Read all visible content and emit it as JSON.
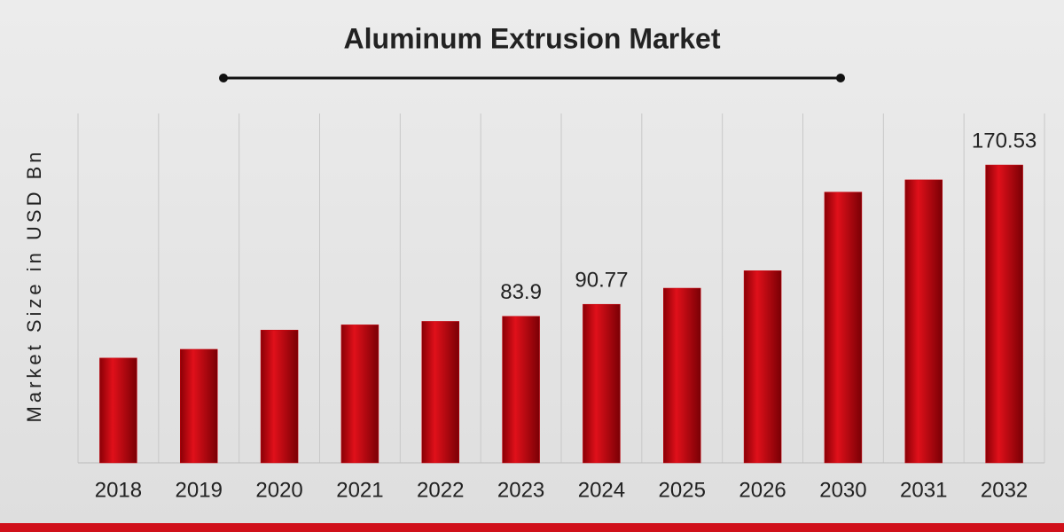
{
  "chart_data": {
    "type": "bar",
    "title": "Aluminum Extrusion Market",
    "y_label": "Market Size in USD Bn",
    "categories": [
      "2018",
      "2019",
      "2020",
      "2021",
      "2022",
      "2023",
      "2024",
      "2025",
      "2026",
      "2030",
      "2031",
      "2032"
    ],
    "values": [
      60,
      65,
      76,
      79,
      81,
      83.9,
      90.77,
      100,
      110,
      155,
      162,
      170.53
    ],
    "value_labels": [
      null,
      null,
      null,
      null,
      null,
      "83.9",
      "90.77",
      null,
      null,
      null,
      null,
      "170.53"
    ],
    "color": "#c8000a",
    "ylim": [
      0,
      200
    ],
    "grid": true
  }
}
